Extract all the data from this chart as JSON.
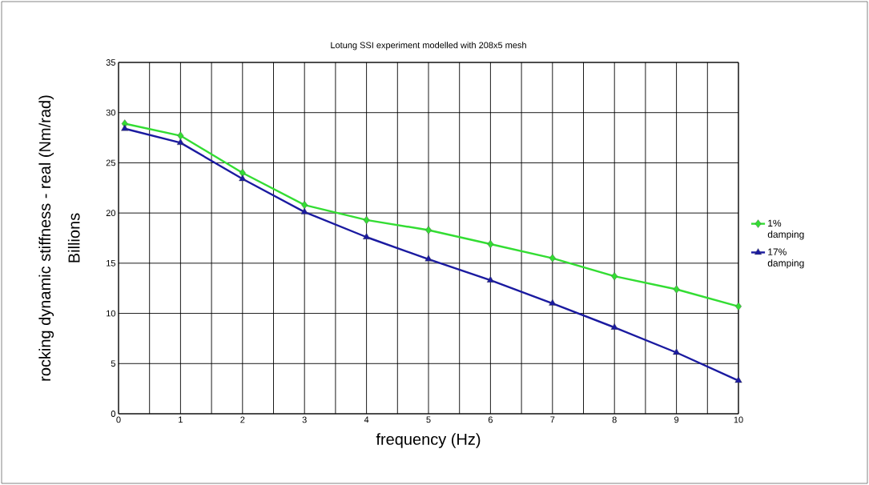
{
  "chart_data": {
    "type": "line",
    "title": "Lotung SSI experiment modelled with 208x5 mesh",
    "xlabel": "frequency (Hz)",
    "ylabel": "rocking dynamic stiffness - real (Nm/rad)",
    "annotations": [
      "Billions"
    ],
    "x": [
      0.1,
      1,
      2,
      3,
      4,
      5,
      6,
      7,
      8,
      9,
      10
    ],
    "series": [
      {
        "name": "1% damping",
        "color": "#33dd33",
        "marker": "diamond",
        "values": [
          28.9,
          27.7,
          24.0,
          20.8,
          19.3,
          18.3,
          16.9,
          15.5,
          13.7,
          12.4,
          10.7
        ]
      },
      {
        "name": "17% damping",
        "color": "#1a1aa0",
        "marker": "triangle",
        "values": [
          28.4,
          27.0,
          23.4,
          20.1,
          17.6,
          15.4,
          13.3,
          11.0,
          8.6,
          6.1,
          3.3
        ]
      }
    ],
    "xlim": [
      0,
      10
    ],
    "ylim": [
      0,
      35
    ],
    "xticks": [
      0,
      {
        "value": 0.5,
        "label": null
      },
      1,
      {
        "value": 1.5,
        "label": null
      },
      2,
      {
        "value": 2.5,
        "label": null
      },
      3,
      {
        "value": 3.5,
        "label": null
      },
      4,
      {
        "value": 4.5,
        "label": null
      },
      5,
      {
        "value": 5.5,
        "label": null
      },
      6,
      {
        "value": 6.5,
        "label": null
      },
      7,
      {
        "value": 7.5,
        "label": null
      },
      8,
      {
        "value": 8.5,
        "label": null
      },
      9,
      {
        "value": 9.5,
        "label": null
      },
      10
    ],
    "yticks": [
      0,
      5,
      10,
      15,
      20,
      25,
      30,
      35
    ],
    "grid": true,
    "legend": "right",
    "line_style": "solid"
  }
}
